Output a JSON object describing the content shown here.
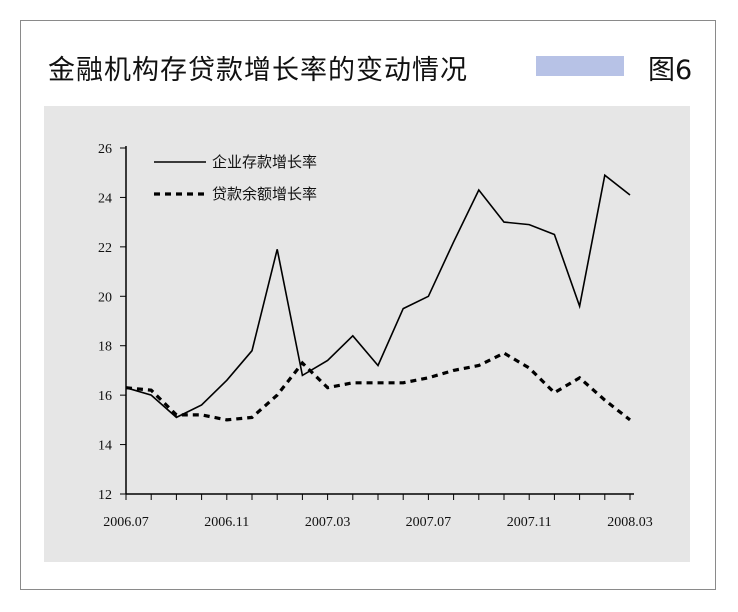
{
  "title": "金融机构存贷款增长率的变动情况",
  "figure_label": "图6",
  "colors": {
    "title_bar": "#b7c2e6",
    "plot_background": "#e6e6e6",
    "line": "#000000"
  },
  "chart_data": {
    "type": "line",
    "title": "金融机构存贷款增长率的变动情况",
    "xlabel": "",
    "ylabel": "",
    "ylim": [
      12,
      26
    ],
    "yticks": [
      "12",
      "14",
      "16",
      "18",
      "20",
      "22",
      "24",
      "26"
    ],
    "x": [
      "2006.07",
      "2006.08",
      "2006.09",
      "2006.10",
      "2006.11",
      "2006.12",
      "2007.01",
      "2007.02",
      "2007.03",
      "2007.04",
      "2007.05",
      "2007.06",
      "2007.07",
      "2007.08",
      "2007.09",
      "2007.10",
      "2007.11",
      "2007.12",
      "2008.01",
      "2008.02",
      "2008.03"
    ],
    "xticks": [
      "2006.07",
      "2006.11",
      "2007.03",
      "2007.07",
      "2007.11",
      "2008.03"
    ],
    "grid": false,
    "legend_position": "top-left",
    "series": [
      {
        "name": "企业存款增长率",
        "style": "solid",
        "values": [
          16.3,
          16.0,
          15.1,
          15.6,
          16.6,
          17.8,
          21.9,
          16.8,
          17.4,
          18.4,
          17.2,
          19.5,
          20.0,
          22.2,
          24.3,
          23.0,
          22.9,
          22.5,
          19.6,
          24.9,
          24.1
        ]
      },
      {
        "name": "贷款余额增长率",
        "style": "dotted",
        "values": [
          16.3,
          16.2,
          15.2,
          15.2,
          15.0,
          15.1,
          16.0,
          17.3,
          16.3,
          16.5,
          16.5,
          16.5,
          16.7,
          17.0,
          17.2,
          17.7,
          17.1,
          16.1,
          16.7,
          15.8,
          15.0
        ]
      }
    ]
  }
}
